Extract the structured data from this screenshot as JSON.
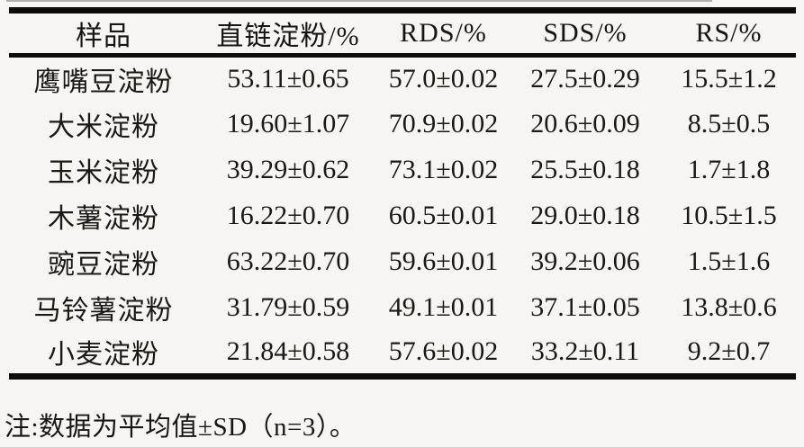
{
  "table": {
    "columns": [
      "样品",
      "直链淀粉/%",
      "RDS/%",
      "SDS/%",
      "RS/%"
    ],
    "rows": [
      {
        "sample": "鹰嘴豆淀粉",
        "amylose": "53.11±0.65",
        "rds": "57.0±0.02",
        "sds": "27.5±0.29",
        "rs": "15.5±1.2"
      },
      {
        "sample": "大米淀粉",
        "amylose": "19.60±1.07",
        "rds": "70.9±0.02",
        "sds": "20.6±0.09",
        "rs": "8.5±0.5"
      },
      {
        "sample": "玉米淀粉",
        "amylose": "39.29±0.62",
        "rds": "73.1±0.02",
        "sds": "25.5±0.18",
        "rs": "1.7±1.8"
      },
      {
        "sample": "木薯淀粉",
        "amylose": "16.22±0.70",
        "rds": "60.5±0.01",
        "sds": "29.0±0.18",
        "rs": "10.5±1.5"
      },
      {
        "sample": "豌豆淀粉",
        "amylose": "63.22±0.70",
        "rds": "59.6±0.01",
        "sds": "39.2±0.06",
        "rs": "1.5±1.6"
      },
      {
        "sample": "马铃薯淀粉",
        "amylose": "31.79±0.59",
        "rds": "49.1±0.01",
        "sds": "37.1±0.05",
        "rs": "13.8±0.6"
      },
      {
        "sample": "小麦淀粉",
        "amylose": "21.84±0.58",
        "rds": "57.6±0.02",
        "sds": "33.2±0.11",
        "rs": "9.2±0.7"
      }
    ]
  },
  "note": {
    "text": "注:数据为平均值±SD（n=3）。"
  }
}
